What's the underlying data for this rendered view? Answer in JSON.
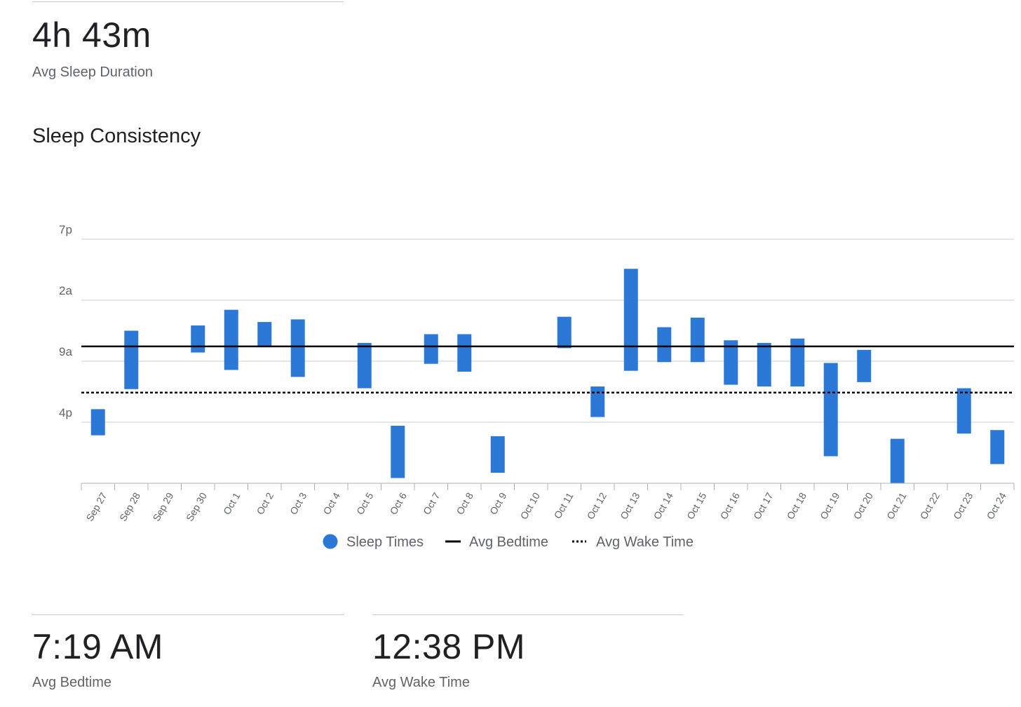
{
  "stats": {
    "duration": {
      "value": "4h 43m",
      "label": "Avg Sleep Duration"
    },
    "bedtime": {
      "value": "7:19 AM",
      "label": "Avg Bedtime"
    },
    "wake": {
      "value": "12:38 PM",
      "label": "Avg Wake Time"
    }
  },
  "chart_data": {
    "type": "bar",
    "title": "Sleep Consistency",
    "y_axis": {
      "ticks": [
        {
          "label": "7p",
          "hour": 19
        },
        {
          "label": "2a",
          "hour": 26
        },
        {
          "label": "9a",
          "hour": 33
        },
        {
          "label": "4p",
          "hour": 40
        }
      ],
      "range_hours": [
        19,
        47
      ],
      "inverted": true
    },
    "categories": [
      "Sep 27",
      "Sep 28",
      "Sep 29",
      "Sep 30",
      "Oct 1",
      "Oct 2",
      "Oct 3",
      "Oct 4",
      "Oct 5",
      "Oct 6",
      "Oct 7",
      "Oct 8",
      "Oct 9",
      "Oct 10",
      "Oct 11",
      "Oct 12",
      "Oct 13",
      "Oct 14",
      "Oct 15",
      "Oct 16",
      "Oct 17",
      "Oct 18",
      "Oct 19",
      "Oct 20",
      "Oct 21",
      "Oct 22",
      "Oct 23",
      "Oct 24"
    ],
    "series": [
      {
        "name": "Sleep Times",
        "color": "#2b78d6",
        "ranges": [
          [
            38.5,
            41.5
          ],
          [
            29.5,
            36.2
          ],
          null,
          [
            28.9,
            32.0
          ],
          [
            27.1,
            34.0
          ],
          [
            28.5,
            31.4
          ],
          [
            28.2,
            34.8
          ],
          null,
          [
            30.9,
            36.1
          ],
          [
            40.4,
            46.4
          ],
          [
            29.9,
            33.3
          ],
          [
            29.9,
            34.2
          ],
          [
            41.6,
            45.8
          ],
          null,
          [
            27.9,
            31.5
          ],
          [
            35.9,
            39.4
          ],
          [
            22.4,
            34.1
          ],
          [
            29.1,
            33.1
          ],
          [
            28.0,
            33.1
          ],
          [
            30.6,
            35.7
          ],
          [
            30.9,
            35.9
          ],
          [
            30.4,
            35.9
          ],
          [
            33.2,
            43.9
          ],
          [
            31.7,
            35.4
          ],
          [
            41.9,
            47.0
          ],
          null,
          [
            36.1,
            41.3
          ],
          [
            40.9,
            44.8
          ]
        ]
      },
      {
        "name": "Avg Bedtime",
        "hour": 31.3,
        "style": "solid",
        "color": "#000000"
      },
      {
        "name": "Avg Wake Time",
        "hour": 36.6,
        "style": "dotted",
        "color": "#000000"
      }
    ],
    "grid": true,
    "legend_position": "bottom"
  }
}
